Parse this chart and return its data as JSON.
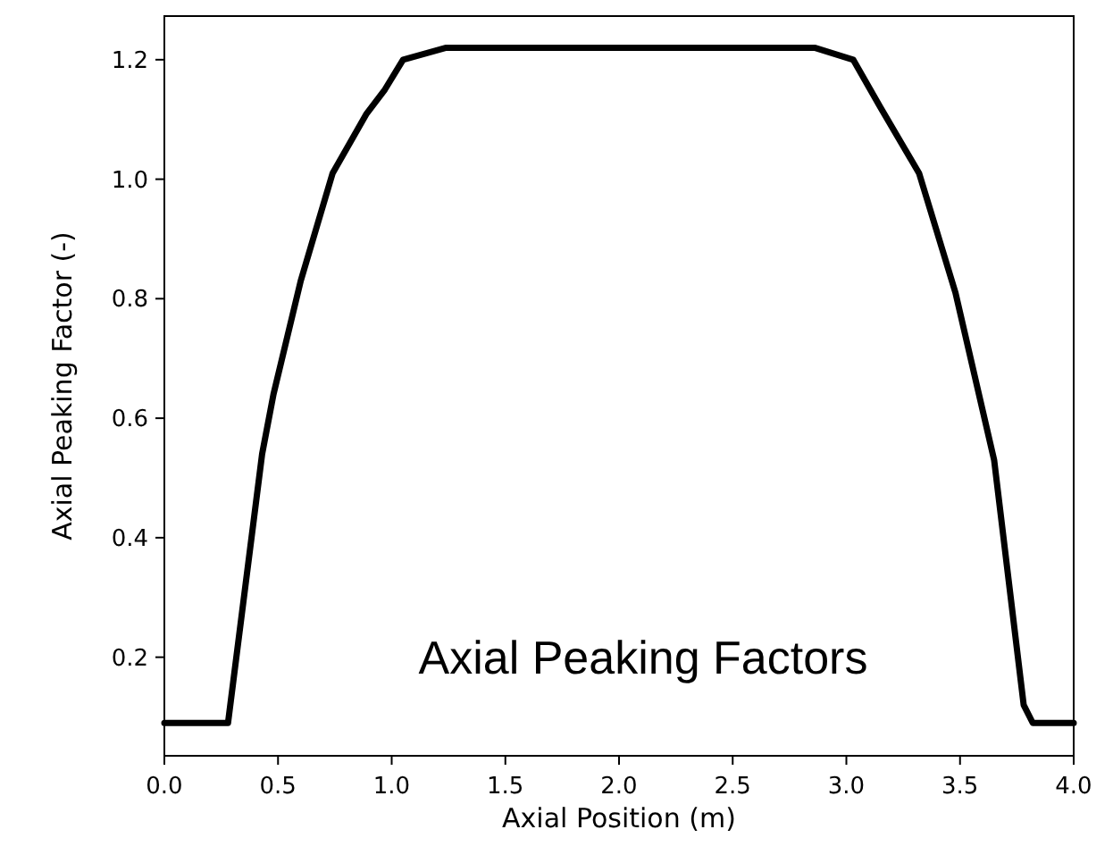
{
  "chart_data": {
    "type": "line",
    "xlabel": "Axial Position (m)",
    "ylabel": "Axial Peaking Factor (-)",
    "annotations": [
      "Axial Peaking Factors"
    ],
    "xlim": [
      0,
      4
    ],
    "xticks": [
      {
        "value": 0,
        "label": "0.0"
      },
      {
        "value": 0.5,
        "label": "0.5"
      },
      {
        "value": 1,
        "label": "1.0"
      },
      {
        "value": 1.5,
        "label": "1.5"
      },
      {
        "value": 2,
        "label": "2.0"
      },
      {
        "value": 2.5,
        "label": "2.5"
      },
      {
        "value": 3,
        "label": "3.0"
      },
      {
        "value": 3.5,
        "label": "3.5"
      },
      {
        "value": 4,
        "label": "4.0"
      }
    ],
    "ylim": [
      0.035,
      1.273
    ],
    "yticks": [
      0.2,
      0.4,
      0.6,
      0.8,
      {
        "value": 1,
        "label": "1.0"
      },
      1.2
    ],
    "grid": false,
    "marker": "none",
    "line_style": "solid",
    "series": [
      {
        "color": "#000000",
        "x": [
          0,
          0.28,
          0.43,
          0.48,
          0.6,
          0.74,
          0.89,
          0.97,
          1.05,
          1.24,
          2.86,
          3.03,
          3.15,
          3.32,
          3.48,
          3.65,
          3.78,
          3.82,
          4.0
        ],
        "values": [
          0.09,
          0.09,
          0.54,
          0.64,
          0.83,
          1.01,
          1.11,
          1.15,
          1.2,
          1.22,
          1.22,
          1.2,
          1.12,
          1.01,
          0.81,
          0.53,
          0.12,
          0.09,
          0.09
        ]
      }
    ]
  }
}
